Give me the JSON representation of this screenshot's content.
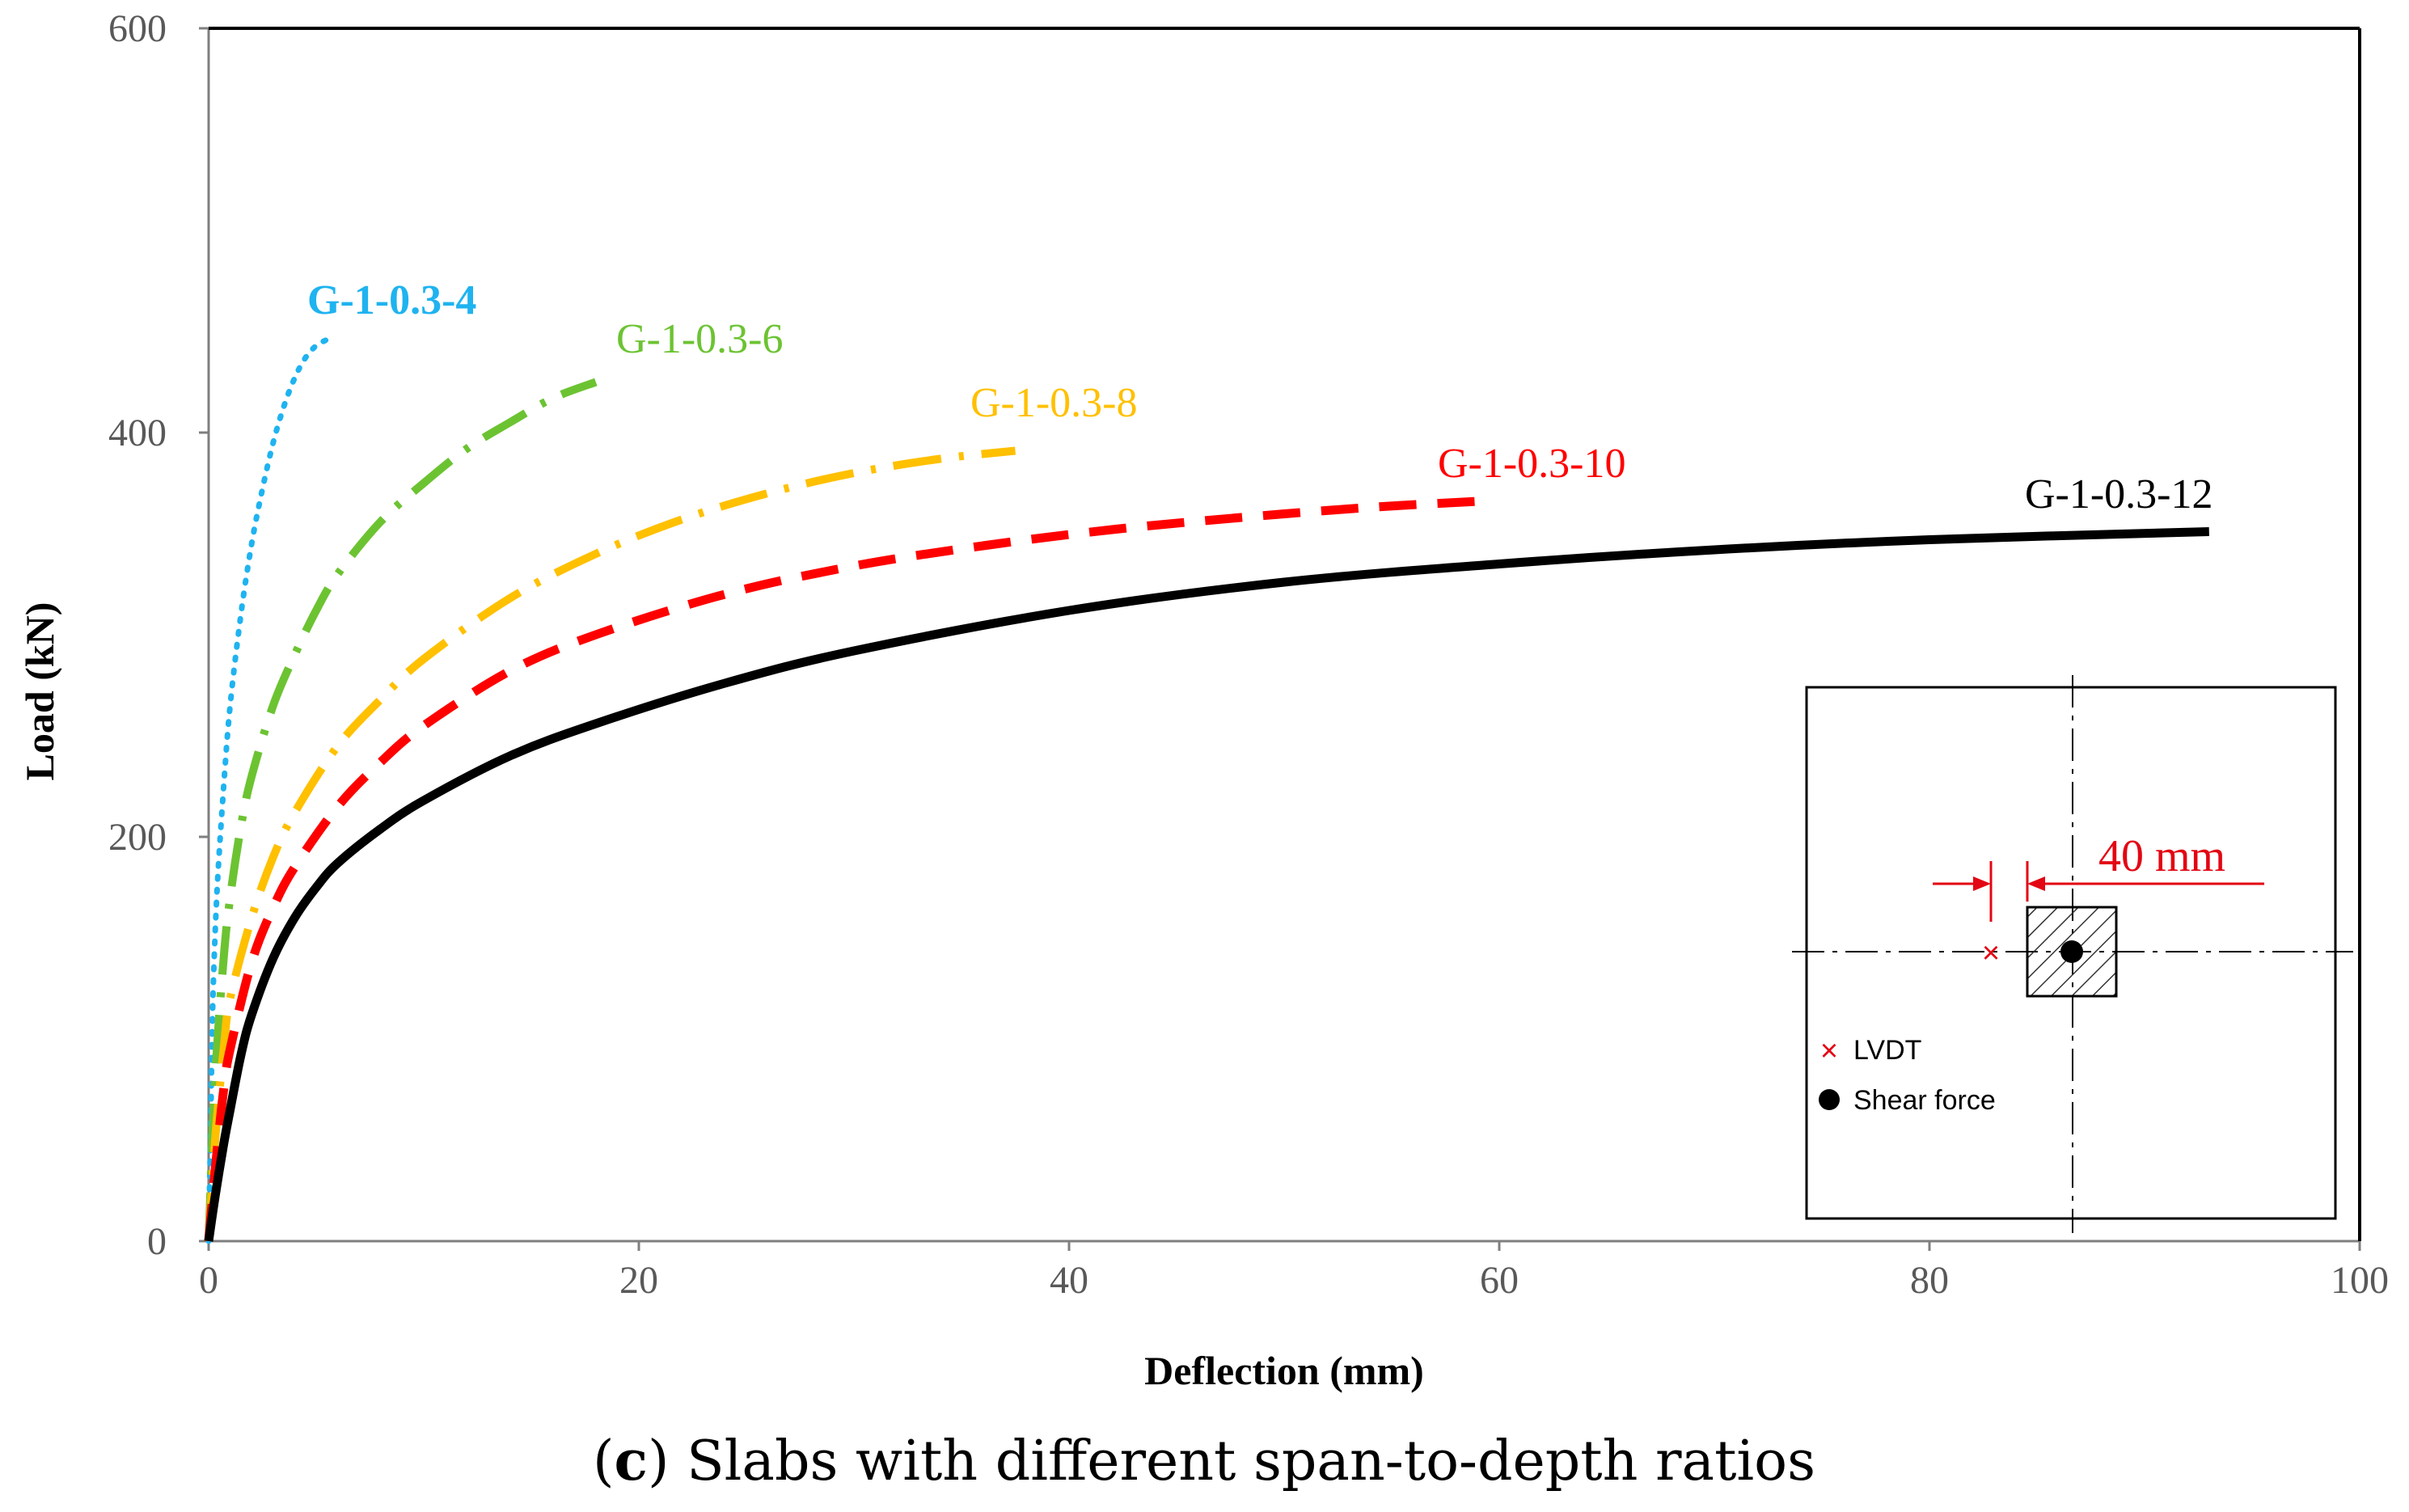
{
  "chart_data": {
    "type": "line",
    "title": "",
    "xlabel": "Deflection (mm)",
    "ylabel": "Load (kN)",
    "xlim": [
      0,
      100
    ],
    "ylim": [
      0,
      600
    ],
    "x_ticks": [
      0,
      20,
      40,
      60,
      80,
      100
    ],
    "y_ticks": [
      0,
      200,
      400,
      600
    ],
    "grid": false,
    "series": [
      {
        "name": "G-1-0.3-4",
        "color": "#1fb3f0",
        "style": "dotted",
        "x": [
          0,
          0.1,
          0.2,
          0.4,
          0.7,
          1.0,
          1.5,
          2.0,
          2.5,
          3.0,
          3.5,
          4.0,
          4.5,
          5.0,
          5.5
        ],
        "y": [
          0,
          60,
          120,
          175,
          225,
          265,
          310,
          345,
          372,
          395,
          413,
          427,
          437,
          443,
          446
        ]
      },
      {
        "name": "G-1-0.3-6",
        "color": "#6cc332",
        "style": "dashdot",
        "x": [
          0,
          0.3,
          0.7,
          1.0,
          1.5,
          2.0,
          3.0,
          4.0,
          5.0,
          6.0,
          8.0,
          10.0,
          12.0,
          14.0,
          16.0,
          18.0
        ],
        "y": [
          0,
          80,
          140,
          170,
          205,
          230,
          265,
          290,
          312,
          330,
          356,
          375,
          392,
          405,
          417,
          425
        ]
      },
      {
        "name": "G-1-0.3-8",
        "color": "#ffc000",
        "style": "dashdot",
        "x": [
          0,
          0.3,
          0.7,
          1.0,
          2.0,
          3.0,
          4.0,
          6.0,
          8.0,
          10.0,
          14.0,
          18.0,
          22.0,
          26.0,
          30.0,
          34.0,
          37.5
        ],
        "y": [
          0,
          50,
          95,
          120,
          160,
          190,
          212,
          245,
          268,
          288,
          318,
          340,
          357,
          370,
          380,
          387,
          391
        ]
      },
      {
        "name": "G-1-0.3-10",
        "color": "#ff0000",
        "style": "dashed",
        "x": [
          0,
          0.3,
          0.7,
          1.0,
          2.0,
          3.0,
          4.0,
          6.0,
          8.0,
          10.0,
          14.0,
          18.0,
          24.0,
          30.0,
          36.0,
          42.0,
          48.0,
          54.0,
          59.0
        ],
        "y": [
          0,
          35,
          75,
          95,
          138,
          165,
          185,
          215,
          237,
          255,
          282,
          300,
          320,
          334,
          344,
          352,
          358,
          363,
          366
        ]
      },
      {
        "name": "G-1-0.3-12",
        "color": "#000000",
        "style": "solid",
        "x": [
          0,
          0.3,
          0.7,
          1.0,
          1.5,
          2.0,
          3.0,
          4.0,
          5.0,
          6.0,
          8.0,
          10.0,
          14.0,
          18.0,
          24.0,
          30.0,
          40.0,
          50.0,
          60.0,
          70.0,
          80.0,
          93.0
        ],
        "y": [
          0,
          22,
          48,
          65,
          92,
          112,
          140,
          160,
          175,
          187,
          204,
          218,
          240,
          256,
          276,
          292,
          312,
          326,
          335,
          342,
          347,
          351
        ]
      }
    ],
    "series_labels": [
      "G-1-0.3-4",
      "G-1-0.3-6",
      "G-1-0.3-8",
      "G-1-0.3-10",
      "G-1-0.3-12"
    ]
  },
  "inset": {
    "dimension_label": "40 mm",
    "legend_lvdt": "LVDT",
    "legend_shear": "Shear force",
    "lvdt_marker": "×"
  },
  "caption": {
    "letter": "c",
    "text": " Slabs with different span-to-depth ratios"
  }
}
